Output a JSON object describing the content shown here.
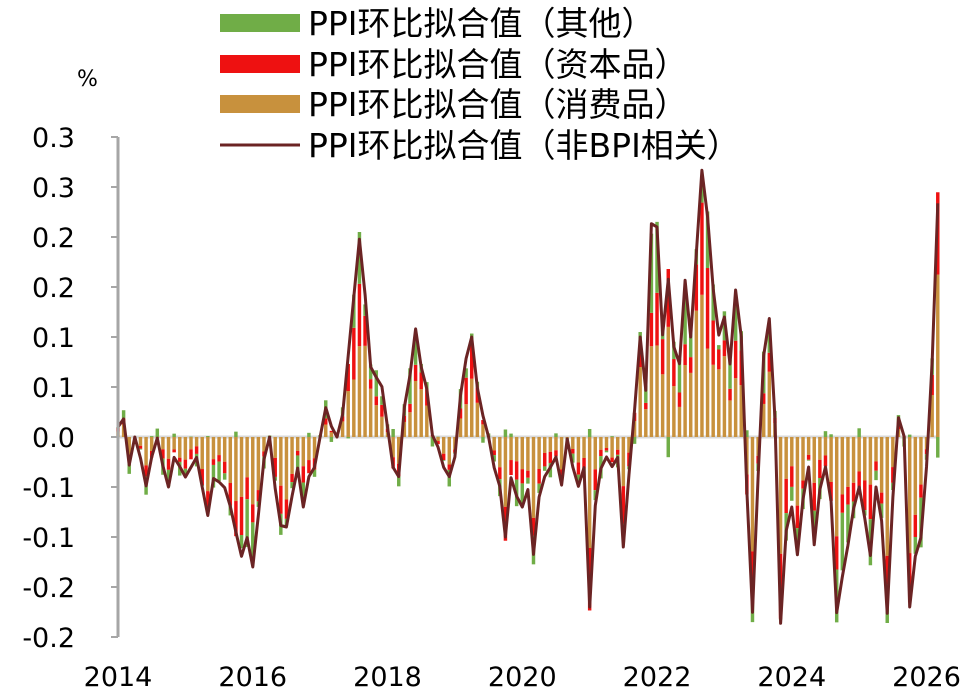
{
  "chart_data": {
    "type": "bar",
    "stacked": true,
    "ylabel": "%",
    "ylim": [
      -0.2,
      0.3
    ],
    "y_ticks": [
      0.3,
      0.25,
      0.2,
      0.15,
      0.1,
      0.05,
      0.0,
      -0.05,
      -0.1,
      -0.15,
      -0.2
    ],
    "y_tick_labels": [
      "0.3",
      "0.3",
      "0.2",
      "0.2",
      "0.1",
      "0.1",
      "0.0",
      "-0.1",
      "-0.1",
      "-0.2",
      "-0.2"
    ],
    "x_ticks": [
      2014,
      2016,
      2018,
      2020,
      2022,
      2024,
      2026
    ],
    "x_tick_labels": [
      "2014",
      "2016",
      "2018",
      "2020",
      "2022",
      "2024",
      "2026"
    ],
    "x_start": 2014.0,
    "x_end": 2026.17,
    "legend_position": "top",
    "legend": [
      {
        "label": "PPI环比拟合值（其他）",
        "type": "bar",
        "color": "#70AD47"
      },
      {
        "label": "PPI环比拟合值（资本品）",
        "type": "bar",
        "color": "#EE1111"
      },
      {
        "label": "PPI环比拟合值（消费品）",
        "type": "bar",
        "color": "#C8913D"
      },
      {
        "label": "PPI环比拟合值（非BPI相关）",
        "type": "line",
        "color": "#6B2424"
      }
    ],
    "colors": {
      "other": "#70AD47",
      "capital": "#EE1111",
      "consumer": "#C8913D",
      "line": "#6B2424",
      "axis": "#A6A6A6",
      "zero_line": "#D9D9D9"
    },
    "line_anchors": [
      [
        2014.0,
        0.01
      ],
      [
        2014.08,
        0.02
      ],
      [
        2014.17,
        -0.03
      ],
      [
        2014.25,
        0.0
      ],
      [
        2014.33,
        -0.02
      ],
      [
        2014.42,
        -0.05
      ],
      [
        2014.5,
        -0.02
      ],
      [
        2014.58,
        0.0
      ],
      [
        2014.67,
        -0.03
      ],
      [
        2014.75,
        -0.05
      ],
      [
        2014.83,
        -0.02
      ],
      [
        2014.92,
        -0.03
      ],
      [
        2015.0,
        -0.04
      ],
      [
        2015.17,
        -0.02
      ],
      [
        2015.25,
        -0.05
      ],
      [
        2015.33,
        -0.08
      ],
      [
        2015.42,
        -0.04
      ],
      [
        2015.58,
        -0.05
      ],
      [
        2015.67,
        -0.07
      ],
      [
        2015.83,
        -0.12
      ],
      [
        2015.92,
        -0.1
      ],
      [
        2016.0,
        -0.13
      ],
      [
        2016.08,
        -0.08
      ],
      [
        2016.17,
        -0.02
      ],
      [
        2016.25,
        0.0
      ],
      [
        2016.33,
        -0.05
      ],
      [
        2016.42,
        -0.09
      ],
      [
        2016.5,
        -0.09
      ],
      [
        2016.58,
        -0.06
      ],
      [
        2016.67,
        -0.03
      ],
      [
        2016.75,
        -0.07
      ],
      [
        2016.83,
        -0.04
      ],
      [
        2016.92,
        -0.03
      ],
      [
        2017.08,
        0.03
      ],
      [
        2017.17,
        0.01
      ],
      [
        2017.25,
        0.0
      ],
      [
        2017.33,
        0.02
      ],
      [
        2017.5,
        0.14
      ],
      [
        2017.58,
        0.2
      ],
      [
        2017.67,
        0.14
      ],
      [
        2017.75,
        0.07
      ],
      [
        2017.83,
        0.06
      ],
      [
        2017.92,
        0.05
      ],
      [
        2018.08,
        -0.03
      ],
      [
        2018.17,
        -0.04
      ],
      [
        2018.25,
        0.03
      ],
      [
        2018.33,
        0.06
      ],
      [
        2018.42,
        0.11
      ],
      [
        2018.5,
        0.07
      ],
      [
        2018.58,
        0.05
      ],
      [
        2018.67,
        0.0
      ],
      [
        2018.75,
        -0.01
      ],
      [
        2018.83,
        -0.03
      ],
      [
        2018.92,
        -0.04
      ],
      [
        2019.0,
        -0.02
      ],
      [
        2019.08,
        0.04
      ],
      [
        2019.17,
        0.08
      ],
      [
        2019.25,
        0.1
      ],
      [
        2019.33,
        0.05
      ],
      [
        2019.42,
        0.02
      ],
      [
        2019.5,
        0.0
      ],
      [
        2019.58,
        -0.03
      ],
      [
        2019.67,
        -0.05
      ],
      [
        2019.75,
        -0.1
      ],
      [
        2019.83,
        -0.04
      ],
      [
        2019.92,
        -0.06
      ],
      [
        2020.0,
        -0.07
      ],
      [
        2020.08,
        -0.05
      ],
      [
        2020.17,
        -0.12
      ],
      [
        2020.25,
        -0.06
      ],
      [
        2020.33,
        -0.04
      ],
      [
        2020.42,
        -0.03
      ],
      [
        2020.5,
        -0.02
      ],
      [
        2020.58,
        -0.05
      ],
      [
        2020.67,
        0.0
      ],
      [
        2020.75,
        -0.03
      ],
      [
        2020.83,
        -0.05
      ],
      [
        2020.92,
        -0.03
      ],
      [
        2021.0,
        -0.17
      ],
      [
        2021.08,
        -0.07
      ],
      [
        2021.17,
        -0.03
      ],
      [
        2021.25,
        -0.02
      ],
      [
        2021.33,
        -0.03
      ],
      [
        2021.42,
        -0.02
      ],
      [
        2021.5,
        -0.11
      ],
      [
        2021.58,
        -0.04
      ],
      [
        2021.67,
        0.03
      ],
      [
        2021.75,
        0.1
      ],
      [
        2021.83,
        0.04
      ],
      [
        2021.92,
        0.22
      ],
      [
        2022.0,
        0.21
      ],
      [
        2022.08,
        0.1
      ],
      [
        2022.17,
        0.16
      ],
      [
        2022.25,
        0.09
      ],
      [
        2022.33,
        0.07
      ],
      [
        2022.42,
        0.16
      ],
      [
        2022.5,
        0.1
      ],
      [
        2022.58,
        0.18
      ],
      [
        2022.67,
        0.27
      ],
      [
        2022.75,
        0.22
      ],
      [
        2022.83,
        0.15
      ],
      [
        2022.92,
        0.1
      ],
      [
        2023.0,
        0.12
      ],
      [
        2023.08,
        0.07
      ],
      [
        2023.17,
        0.15
      ],
      [
        2023.25,
        0.1
      ],
      [
        2023.33,
        -0.05
      ],
      [
        2023.42,
        -0.18
      ],
      [
        2023.5,
        -0.04
      ],
      [
        2023.58,
        0.08
      ],
      [
        2023.67,
        0.12
      ],
      [
        2023.75,
        0.02
      ],
      [
        2023.83,
        -0.19
      ],
      [
        2023.92,
        -0.09
      ],
      [
        2024.0,
        -0.07
      ],
      [
        2024.08,
        -0.12
      ],
      [
        2024.17,
        -0.06
      ],
      [
        2024.25,
        -0.03
      ],
      [
        2024.33,
        -0.11
      ],
      [
        2024.42,
        -0.05
      ],
      [
        2024.5,
        -0.03
      ],
      [
        2024.58,
        -0.06
      ],
      [
        2024.67,
        -0.18
      ],
      [
        2024.75,
        -0.14
      ],
      [
        2024.83,
        -0.11
      ],
      [
        2024.92,
        -0.07
      ],
      [
        2025.0,
        -0.05
      ],
      [
        2025.08,
        -0.08
      ],
      [
        2025.17,
        -0.12
      ],
      [
        2025.25,
        -0.05
      ],
      [
        2025.33,
        -0.08
      ],
      [
        2025.42,
        -0.18
      ],
      [
        2025.5,
        -0.06
      ],
      [
        2025.58,
        0.02
      ],
      [
        2025.67,
        0.0
      ],
      [
        2025.75,
        -0.17
      ],
      [
        2025.83,
        -0.12
      ],
      [
        2025.92,
        -0.1
      ],
      [
        2026.0,
        -0.03
      ],
      [
        2026.08,
        0.07
      ],
      [
        2026.17,
        0.24
      ]
    ]
  }
}
